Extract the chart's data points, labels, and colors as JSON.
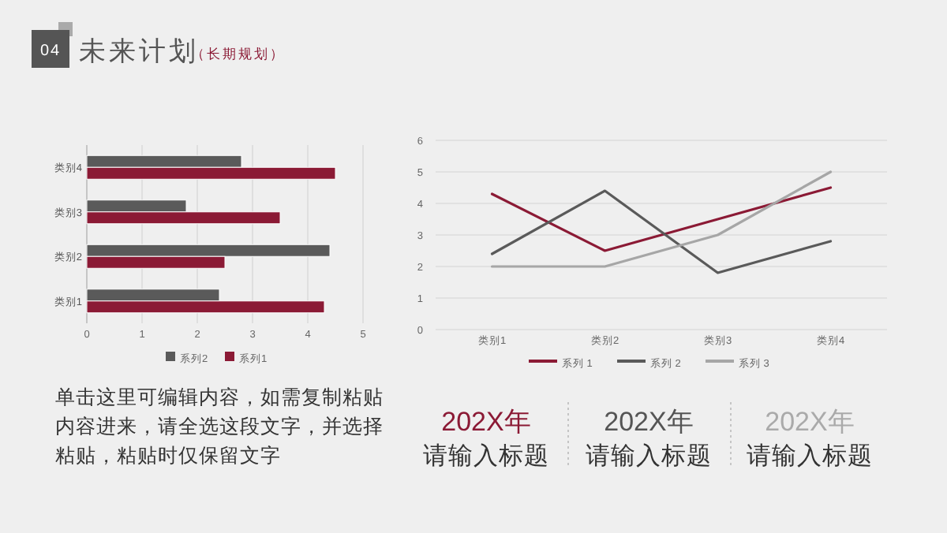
{
  "chart_data": [
    {
      "type": "bar",
      "orientation": "horizontal",
      "categories": [
        "类别4",
        "类别3",
        "类别2",
        "类别1"
      ],
      "series": [
        {
          "name": "系列2",
          "color": "#5a5a5a",
          "values": [
            2.8,
            1.8,
            4.4,
            2.4
          ]
        },
        {
          "name": "系列1",
          "color": "#8b1a35",
          "values": [
            4.5,
            3.5,
            2.5,
            4.3
          ]
        }
      ],
      "xlim": [
        0,
        5
      ],
      "xticks": [
        0,
        1,
        2,
        3,
        4,
        5
      ],
      "grid": "x",
      "legend": "bottom"
    },
    {
      "type": "line",
      "categories": [
        "类别1",
        "类别2",
        "类别3",
        "类别4"
      ],
      "series": [
        {
          "name": "系列 1",
          "color": "#8b1a35",
          "values": [
            4.3,
            2.5,
            3.5,
            4.5
          ]
        },
        {
          "name": "系列 2",
          "color": "#5a5a5a",
          "values": [
            2.4,
            4.4,
            1.8,
            2.8
          ]
        },
        {
          "name": "系列 3",
          "color": "#a6a6a6",
          "values": [
            2,
            2,
            3,
            5
          ]
        }
      ],
      "ylim": [
        0,
        6
      ],
      "yticks": [
        0,
        1,
        2,
        3,
        4,
        5,
        6
      ],
      "grid": "y",
      "legend": "bottom",
      "marker": "none",
      "line_style": "solid"
    },
    {
      "type": "other",
      "title": "未来计划",
      "subtitle": "（长期规划）",
      "annotations": [
        "04",
        "单击这里可编辑内容，如需复制粘贴内容进来，请全选这段文字，并选择粘贴，粘贴时仅保留文字",
        "202X年",
        "请输入标题",
        "202X年",
        "请输入标题",
        "202X年",
        "请输入标题"
      ]
    }
  ]
}
